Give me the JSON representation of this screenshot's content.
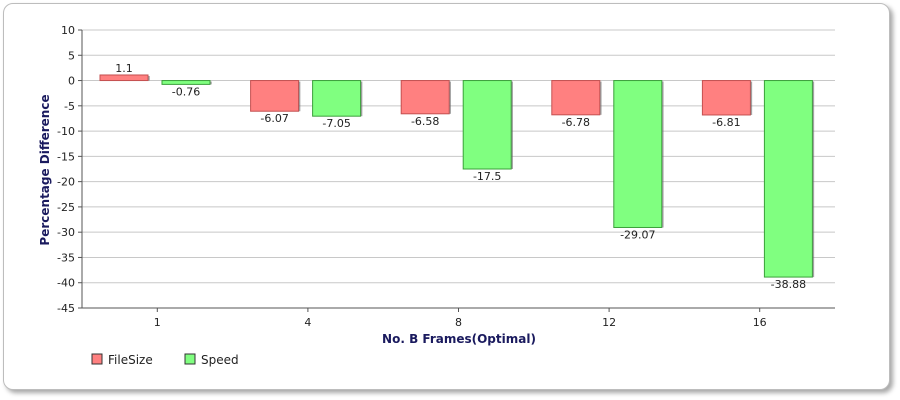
{
  "chart_data": {
    "type": "bar",
    "title": "",
    "xlabel": "No. B Frames(Optimal)",
    "ylabel": "Percentage Difference",
    "categories": [
      "1",
      "4",
      "8",
      "12",
      "16"
    ],
    "series": [
      {
        "name": "FileSize",
        "values": [
          1.1,
          -6.07,
          -6.58,
          -6.78,
          -6.81
        ],
        "labels": [
          "1.1",
          "-6.07",
          "-6.58",
          "-6.78",
          "-6.81"
        ],
        "color": "#ff8080",
        "edge": "#c45050"
      },
      {
        "name": "Speed",
        "values": [
          -0.76,
          -7.05,
          -17.5,
          -29.07,
          -38.88
        ],
        "labels": [
          "-0.76",
          "-7.05",
          "-17.5",
          "-29.07",
          "-38.88"
        ],
        "color": "#80ff80",
        "edge": "#3aa03a"
      }
    ],
    "ylim": [
      -45,
      10
    ],
    "yticks": [
      10,
      5,
      0,
      -5,
      -10,
      -15,
      -20,
      -25,
      -30,
      -35,
      -40,
      -45
    ],
    "grid": true,
    "legend_position": "bottom-left"
  }
}
